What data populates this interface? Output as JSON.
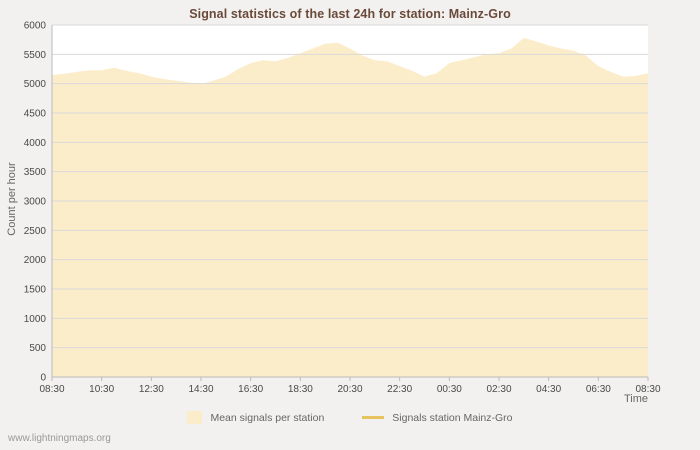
{
  "watermark": "www.lightningmaps.org",
  "chart_data": {
    "type": "area",
    "title": "Signal statistics of the last 24h for station: Mainz-Gro",
    "xlabel": "Time",
    "ylabel": "Count per hour",
    "ylim": [
      0,
      6000
    ],
    "y_ticks": [
      0,
      500,
      1000,
      1500,
      2000,
      2500,
      3000,
      3500,
      4000,
      4500,
      5000,
      5500,
      6000
    ],
    "x_ticks": [
      "08:30",
      "10:30",
      "12:30",
      "14:30",
      "16:30",
      "18:30",
      "20:30",
      "22:30",
      "00:30",
      "02:30",
      "04:30",
      "06:30",
      "08:30"
    ],
    "grid": "horizontal",
    "legend_position": "bottom",
    "interval_minutes": 30,
    "series": [
      {
        "name": "Mean signals per station",
        "type": "area",
        "color": "#fcedca",
        "values": [
          5150,
          5170,
          5200,
          5230,
          5230,
          5270,
          5220,
          5180,
          5120,
          5080,
          5050,
          5020,
          5000,
          5050,
          5120,
          5250,
          5350,
          5400,
          5380,
          5440,
          5520,
          5600,
          5680,
          5700,
          5600,
          5480,
          5400,
          5380,
          5300,
          5220,
          5120,
          5180,
          5350,
          5400,
          5450,
          5500,
          5520,
          5600,
          5780,
          5720,
          5650,
          5600,
          5560,
          5480,
          5300,
          5200,
          5120,
          5130,
          5180
        ]
      },
      {
        "name": "Signals station Mainz-Gro",
        "type": "line",
        "color": "#e6c35c",
        "values": []
      }
    ],
    "colors": {
      "page_bg": "#f2f1ef",
      "plot_bg": "#ffffff",
      "grid": "#d9d9d9",
      "axis": "#bbbbbb",
      "tick_text": "#4a4a4a",
      "label_text": "#666666",
      "title_text": "#6a4a3a",
      "watermark_text": "#999999"
    }
  }
}
